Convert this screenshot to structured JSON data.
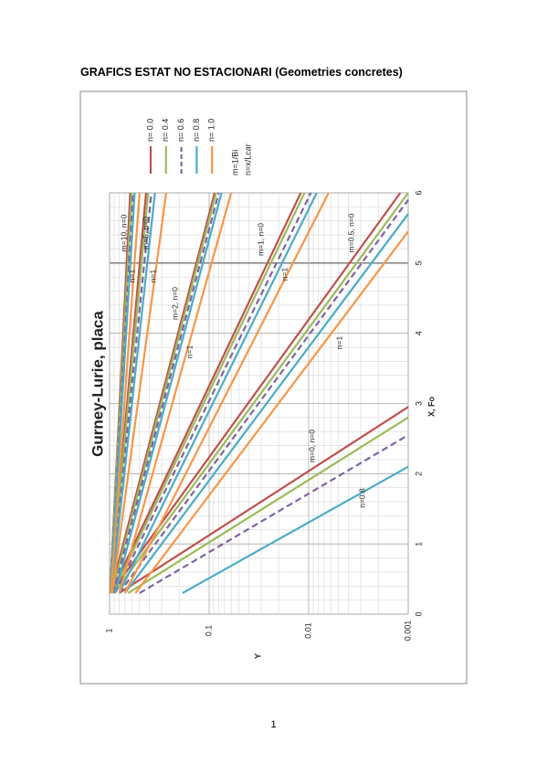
{
  "document": {
    "heading": "GRAFICS ESTAT NO ESTACIONARI (Geometries concretes)",
    "page_number": "1"
  },
  "chart_data": {
    "type": "line",
    "title": "Gurney-Lurie, placa",
    "xlabel": "X, Fo",
    "ylabel": "Y",
    "xlim": [
      0,
      6
    ],
    "xticks": [
      0,
      1,
      2,
      3,
      4,
      5,
      6
    ],
    "ylim": [
      1,
      0.001
    ],
    "yscale": "log",
    "yticks": [
      1,
      0.1,
      0.01,
      0.001
    ],
    "grid": true,
    "legend": [
      {
        "label": "n= 0.0",
        "color": "#c0504d"
      },
      {
        "label": "n= 0.4",
        "color": "#9bbb59"
      },
      {
        "label": "n= 0.6",
        "color": "#8064a2",
        "dash": true
      },
      {
        "label": "n= 0.8",
        "color": "#4bacc6"
      },
      {
        "label": "n= 1.0",
        "color": "#f79646"
      }
    ],
    "legend_notes": [
      "m=1/Bi",
      "n=x/Lcar"
    ],
    "series": [
      {
        "color": "#c0504d",
        "x": [
          0.3,
          2.95
        ],
        "values": [
          0.8,
          0.001
        ]
      },
      {
        "color": "#9bbb59",
        "x": [
          0.3,
          2.8
        ],
        "values": [
          0.65,
          0.001
        ]
      },
      {
        "color": "#8064a2",
        "dash": true,
        "x": [
          0.3,
          2.55
        ],
        "values": [
          0.5,
          0.001
        ]
      },
      {
        "color": "#4bacc6",
        "x": [
          0.3,
          2.1
        ],
        "values": [
          0.185,
          0.001
        ]
      },
      {
        "color": "#c0504d",
        "x": [
          0.3,
          6
        ],
        "values": [
          0.97,
          0.0012
        ]
      },
      {
        "color": "#9bbb59",
        "x": [
          0.3,
          6
        ],
        "values": [
          0.9,
          0.001
        ]
      },
      {
        "color": "#8064a2",
        "dash": true,
        "x": [
          0.3,
          5.9
        ],
        "values": [
          0.8,
          0.001
        ]
      },
      {
        "color": "#4bacc6",
        "x": [
          0.3,
          5.7
        ],
        "values": [
          0.7,
          0.001
        ]
      },
      {
        "color": "#f79646",
        "x": [
          0.3,
          5.45
        ],
        "values": [
          0.55,
          0.001
        ]
      },
      {
        "color": "#c0504d",
        "x": [
          0.3,
          6
        ],
        "values": [
          0.97,
          0.012
        ]
      },
      {
        "color": "#9bbb59",
        "x": [
          0.3,
          6
        ],
        "values": [
          0.93,
          0.011
        ]
      },
      {
        "color": "#8064a2",
        "dash": true,
        "x": [
          0.3,
          6
        ],
        "values": [
          0.88,
          0.0095
        ]
      },
      {
        "color": "#4bacc6",
        "x": [
          0.3,
          6
        ],
        "values": [
          0.8,
          0.0083
        ]
      },
      {
        "color": "#f79646",
        "x": [
          0.3,
          6
        ],
        "values": [
          0.7,
          0.0063
        ]
      },
      {
        "color": "#c0504d",
        "x": [
          0.3,
          6
        ],
        "values": [
          0.98,
          0.088
        ]
      },
      {
        "color": "#9bbb59",
        "x": [
          0.3,
          6
        ],
        "values": [
          0.95,
          0.085
        ]
      },
      {
        "color": "#8064a2",
        "dash": true,
        "x": [
          0.3,
          6
        ],
        "values": [
          0.92,
          0.08
        ]
      },
      {
        "color": "#4bacc6",
        "x": [
          0.3,
          6
        ],
        "values": [
          0.88,
          0.075
        ]
      },
      {
        "color": "#f79646",
        "x": [
          0.3,
          6
        ],
        "values": [
          0.8,
          0.06
        ]
      },
      {
        "color": "#c0504d",
        "x": [
          0.3,
          6
        ],
        "values": [
          0.99,
          0.43
        ]
      },
      {
        "color": "#9bbb59",
        "x": [
          0.3,
          6
        ],
        "values": [
          0.98,
          0.41
        ]
      },
      {
        "color": "#8064a2",
        "dash": true,
        "x": [
          0.3,
          6
        ],
        "values": [
          0.97,
          0.38
        ]
      },
      {
        "color": "#4bacc6",
        "x": [
          0.3,
          6
        ],
        "values": [
          0.96,
          0.35
        ]
      },
      {
        "color": "#f79646",
        "x": [
          0.3,
          6
        ],
        "values": [
          0.94,
          0.27
        ]
      },
      {
        "color": "#c0504d",
        "x": [
          0.3,
          6
        ],
        "values": [
          0.99,
          0.62
        ]
      },
      {
        "color": "#9bbb59",
        "x": [
          0.3,
          6
        ],
        "values": [
          0.99,
          0.6
        ]
      },
      {
        "color": "#8064a2",
        "dash": true,
        "x": [
          0.3,
          6
        ],
        "values": [
          0.985,
          0.58
        ]
      },
      {
        "color": "#4bacc6",
        "x": [
          0.3,
          6
        ],
        "values": [
          0.98,
          0.56
        ]
      },
      {
        "color": "#f79646",
        "x": [
          0.3,
          6
        ],
        "values": [
          0.97,
          0.5
        ]
      }
    ],
    "annotations": [
      "m=10, n=0",
      "m=5, n=0",
      "n=1",
      "n=1",
      "m=2, n=0",
      "n=1",
      "m=1, n=0",
      "n=1",
      "m=0.5, n=0",
      "n=1",
      "m=0, n=0",
      "n=0.8"
    ]
  }
}
